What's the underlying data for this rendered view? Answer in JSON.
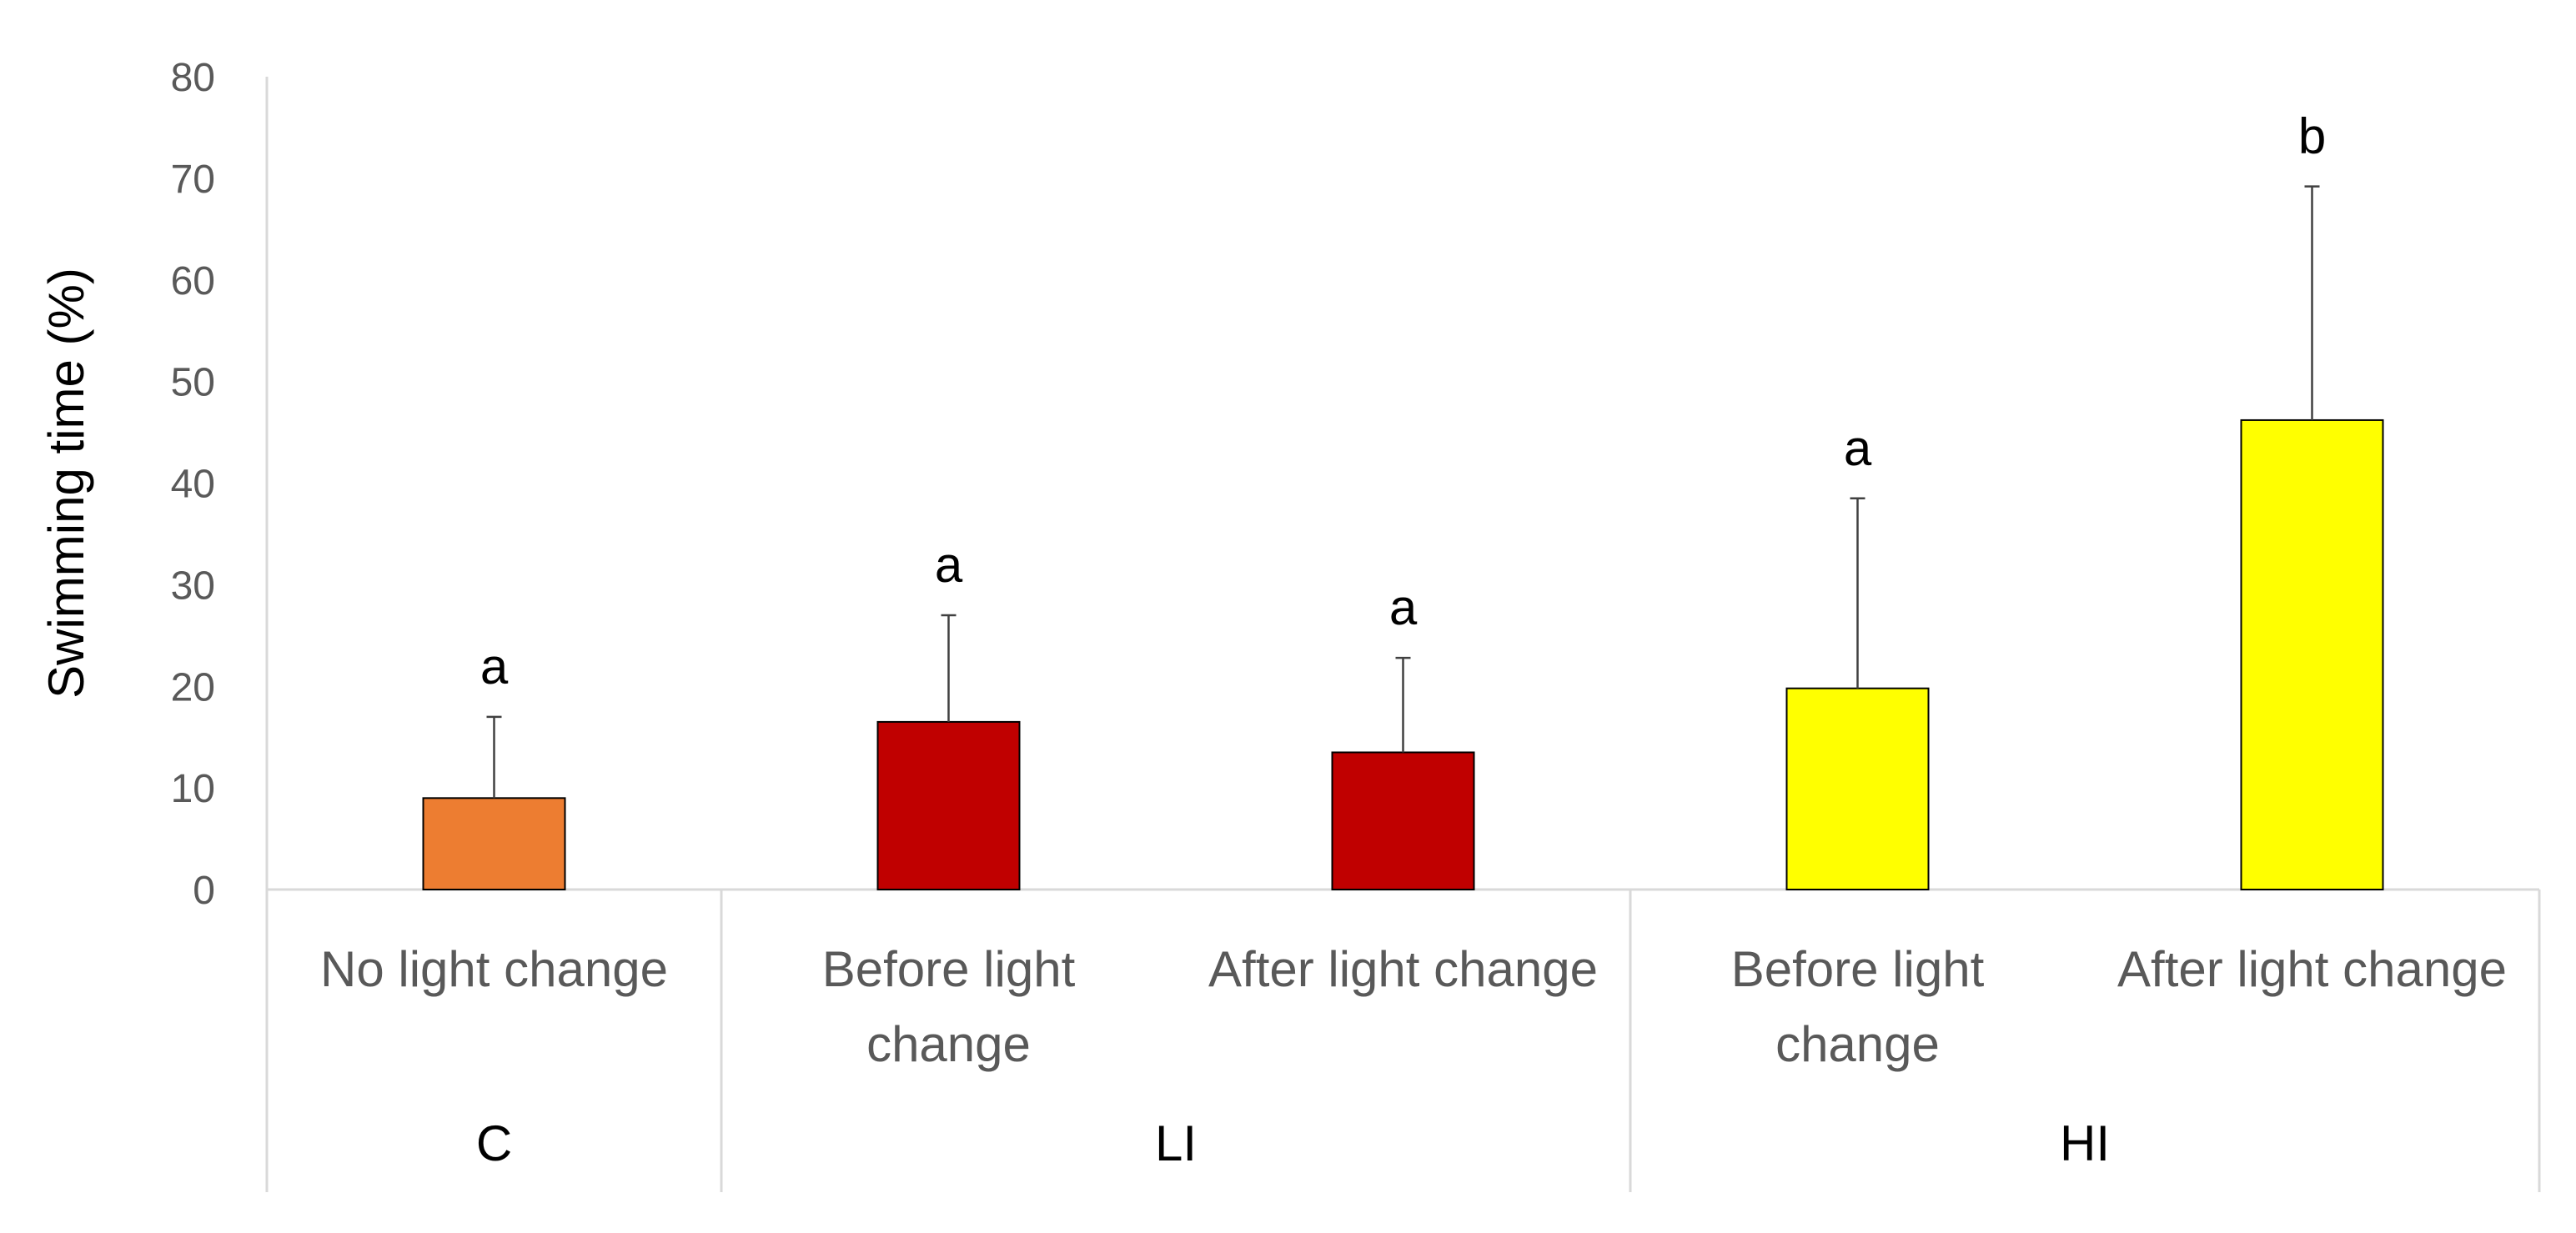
{
  "chart_data": {
    "type": "bar",
    "ylabel": "Swimming time (%)",
    "xlabel": "",
    "ylim": [
      0,
      80
    ],
    "yticks": [
      "0",
      "10",
      "20",
      "30",
      "40",
      "50",
      "60",
      "70",
      "80"
    ],
    "grid": false,
    "groups": [
      {
        "label": "C",
        "categories": [
          "No light change"
        ]
      },
      {
        "label": "LI",
        "categories": [
          "Before light change",
          "After light change"
        ]
      },
      {
        "label": "HI",
        "categories": [
          "Before light change",
          "After light change"
        ]
      }
    ],
    "bars": [
      {
        "group": "C",
        "category_lines": [
          "No light change"
        ],
        "value": 9,
        "error": 8,
        "sig": "a",
        "color": "#ED7D31"
      },
      {
        "group": "LI",
        "category_lines": [
          "Before light",
          "change"
        ],
        "value": 16.5,
        "error": 10.5,
        "sig": "a",
        "color": "#C00000"
      },
      {
        "group": "LI",
        "category_lines": [
          "After light change"
        ],
        "value": 13.5,
        "error": 9.3,
        "sig": "a",
        "color": "#C00000"
      },
      {
        "group": "HI",
        "category_lines": [
          "Before light",
          "change"
        ],
        "value": 19.8,
        "error": 18.7,
        "sig": "a",
        "color": "#FFFF00"
      },
      {
        "group": "HI",
        "category_lines": [
          "After light change"
        ],
        "value": 46.2,
        "error": 23,
        "sig": "b",
        "color": "#FFFF00"
      }
    ]
  }
}
